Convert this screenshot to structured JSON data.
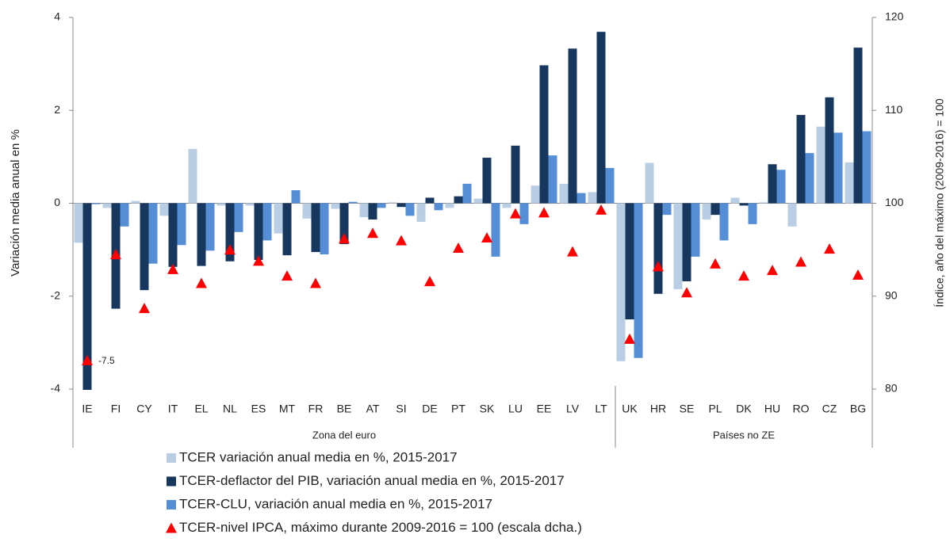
{
  "chart_data": {
    "type": "bar",
    "y_label": "Variación media anual en %",
    "y2_label": "Índice, año del máximo (2009-2016) = 100",
    "categories": [
      "IE",
      "FI",
      "CY",
      "IT",
      "EL",
      "NL",
      "ES",
      "MT",
      "FR",
      "BE",
      "AT",
      "SI",
      "DE",
      "PT",
      "SK",
      "LU",
      "EE",
      "LV",
      "LT",
      "UK",
      "HR",
      "SE",
      "PL",
      "DK",
      "HU",
      "RO",
      "CZ",
      "BG"
    ],
    "groups": [
      {
        "label": "Zona del euro",
        "count": 19
      },
      {
        "label": "Países no ZE",
        "count": 9
      }
    ],
    "ylim": [
      -4,
      4
    ],
    "yticks": [
      -4,
      -2,
      0,
      2,
      4
    ],
    "y2lim": [
      80,
      120
    ],
    "y2ticks": [
      80,
      90,
      100,
      110,
      120
    ],
    "legend": "bottom",
    "series": [
      {
        "name": "TCER variación anual media en %, 2015-2017",
        "type": "bar",
        "color": "#b9cde5",
        "values": [
          -0.85,
          -0.1,
          0.05,
          -0.27,
          1.17,
          -0.05,
          -0.05,
          -0.65,
          -0.33,
          -0.12,
          -0.3,
          0.02,
          -0.4,
          -0.1,
          0.1,
          -0.1,
          0.38,
          0.42,
          0.24,
          -3.4,
          0.87,
          -1.85,
          -0.35,
          0.12,
          0.02,
          -0.5,
          1.65,
          0.88
        ]
      },
      {
        "name": "TCER-deflactor del PIB, variación anual media en %, 2015-2017",
        "type": "bar",
        "color": "#17375e",
        "values": [
          -7.5,
          -2.27,
          -1.87,
          -1.37,
          -1.35,
          -1.25,
          -1.22,
          -1.12,
          -1.05,
          -0.88,
          -0.35,
          -0.08,
          0.12,
          0.15,
          0.98,
          1.24,
          2.97,
          3.33,
          3.69,
          -2.5,
          -1.95,
          -1.68,
          -0.25,
          -0.05,
          0.84,
          1.9,
          2.28,
          3.35
        ],
        "value_labels": [
          "-7.5",
          null,
          null,
          null,
          null,
          null,
          null,
          null,
          null,
          null,
          null,
          null,
          null,
          null,
          null,
          null,
          null,
          null,
          null,
          null,
          null,
          null,
          null,
          null,
          null,
          null,
          null,
          null
        ]
      },
      {
        "name": "TCER-CLU, variación anual media en %, 2015-2017",
        "type": "bar",
        "color": "#558ed5",
        "values": [
          -0.02,
          -0.5,
          -1.3,
          -0.9,
          -1.02,
          -0.62,
          -0.8,
          0.28,
          -1.1,
          0.03,
          -0.1,
          -0.27,
          -0.15,
          0.42,
          -1.15,
          -0.45,
          1.03,
          0.22,
          0.76,
          -3.33,
          -0.25,
          -1.15,
          -0.8,
          -0.45,
          0.72,
          1.08,
          1.52,
          1.55
        ]
      },
      {
        "name": "TCER-nivel IPCA, máximo durante 2009-2016 = 100 (escala dcha.)",
        "type": "marker",
        "axis": "y2",
        "color": "#ff0000",
        "values": [
          83.0,
          94.4,
          88.6,
          92.8,
          91.3,
          94.9,
          93.7,
          92.1,
          91.3,
          96.1,
          96.7,
          95.9,
          91.5,
          95.1,
          96.2,
          98.8,
          98.9,
          94.7,
          99.2,
          85.3,
          93.1,
          90.3,
          93.4,
          92.1,
          92.7,
          93.6,
          95.0,
          92.2
        ]
      }
    ]
  }
}
